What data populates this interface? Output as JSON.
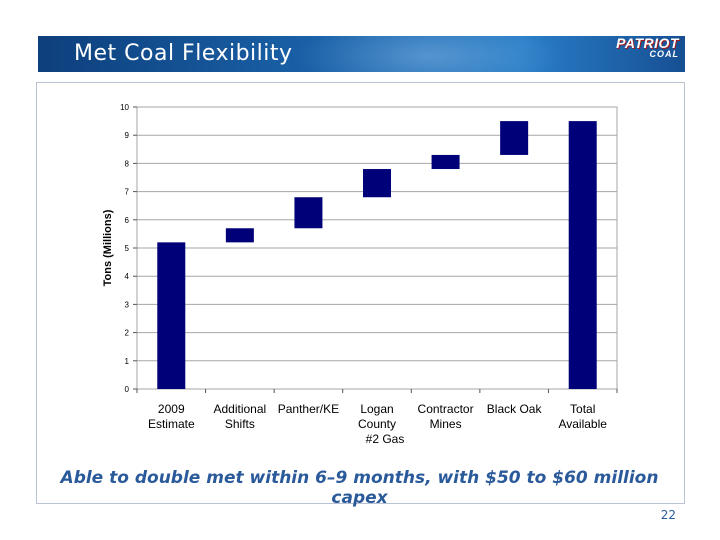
{
  "slide": {
    "title": "Met Coal Flexibility",
    "logo_main": "PATRIOT",
    "logo_sub": "COAL",
    "caption": "Able to double met within 6–9 months, with $50 to $60 million capex",
    "page_number": "22"
  },
  "colors": {
    "bar": "#000078",
    "grid": "#a6a6a6",
    "header_dark": "#0d3f7c",
    "caption": "#2a5a9a"
  },
  "chart_data": {
    "type": "bar",
    "subtype": "waterfall",
    "title": "",
    "xlabel": "",
    "ylabel": "Tons (Millions)",
    "ylim": [
      0,
      10
    ],
    "yticks": [
      0,
      1,
      2,
      3,
      4,
      5,
      6,
      7,
      8,
      9,
      10
    ],
    "grid": true,
    "categories": [
      [
        "2009",
        "Estimate"
      ],
      [
        "Additional",
        "Shifts"
      ],
      [
        "Panther/KE"
      ],
      [
        "Logan",
        "County",
        "#2 Gas"
      ],
      [
        "Contractor",
        "Mines"
      ],
      [
        "Black Oak"
      ],
      [
        "Total",
        "Available"
      ]
    ],
    "bars": [
      {
        "low": 0,
        "high": 5.2
      },
      {
        "low": 5.2,
        "high": 5.7
      },
      {
        "low": 5.7,
        "high": 6.8
      },
      {
        "low": 6.8,
        "high": 7.8
      },
      {
        "low": 7.8,
        "high": 8.3
      },
      {
        "low": 8.3,
        "high": 9.5
      },
      {
        "low": 0,
        "high": 9.5
      }
    ]
  }
}
